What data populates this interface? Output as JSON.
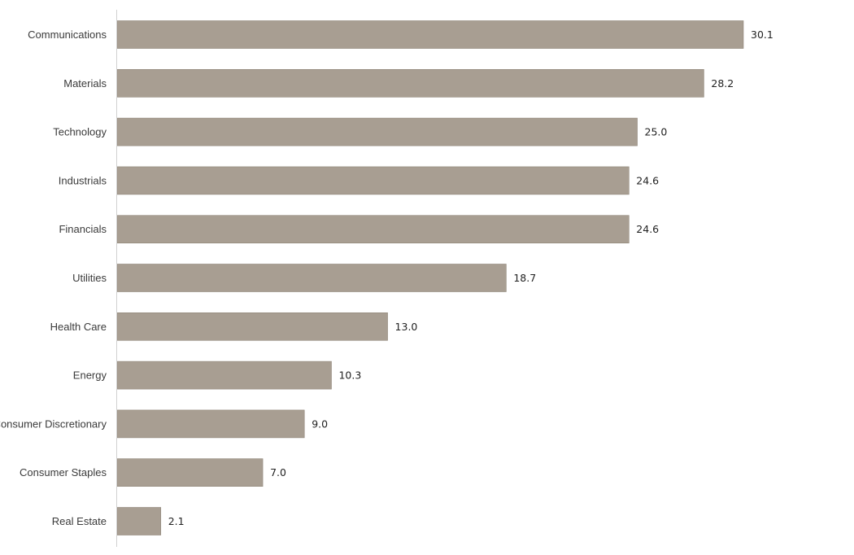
{
  "chart_data": {
    "type": "bar",
    "orientation": "horizontal",
    "title": "",
    "xlabel": "",
    "ylabel": "",
    "categories": [
      "Communications",
      "Materials",
      "Technology",
      "Industrials",
      "Financials",
      "Utilities",
      "Health Care",
      "Energy",
      "Consumer Discretionary",
      "Consumer Staples",
      "Real Estate"
    ],
    "values": [
      30.1,
      28.2,
      25.0,
      24.6,
      24.6,
      18.7,
      13.0,
      10.3,
      9.0,
      7.0,
      2.1
    ],
    "value_labels": [
      "30.1",
      "28.2",
      "25.0",
      "24.6",
      "24.6",
      "18.7",
      "13.0",
      "10.3",
      "9.0",
      "7.0",
      "2.1"
    ],
    "xlim": [
      0,
      30.1
    ],
    "grid": false,
    "legend": "none",
    "bar_color": "#a89e92"
  }
}
